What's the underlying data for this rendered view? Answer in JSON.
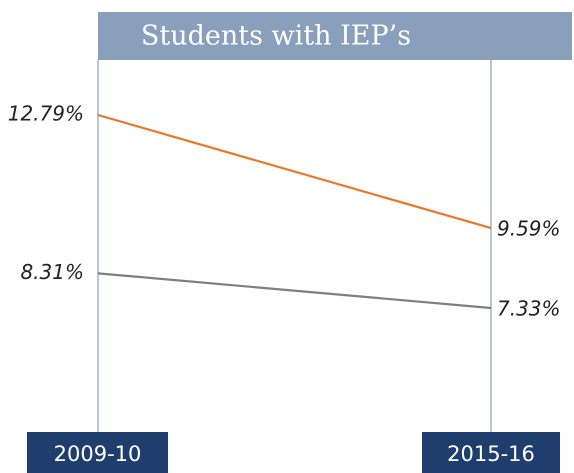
{
  "chart_data": {
    "type": "line",
    "title": "Students with IEP’s",
    "categories": [
      "2009-10",
      "2015-16"
    ],
    "series": [
      {
        "color": "#e8792b",
        "values": [
          12.79,
          9.59
        ],
        "value_labels": [
          "12.79%",
          "9.59%"
        ]
      },
      {
        "color": "#7f7f7f",
        "values": [
          8.31,
          7.33
        ],
        "value_labels": [
          "8.31%",
          "7.33%"
        ]
      }
    ]
  }
}
